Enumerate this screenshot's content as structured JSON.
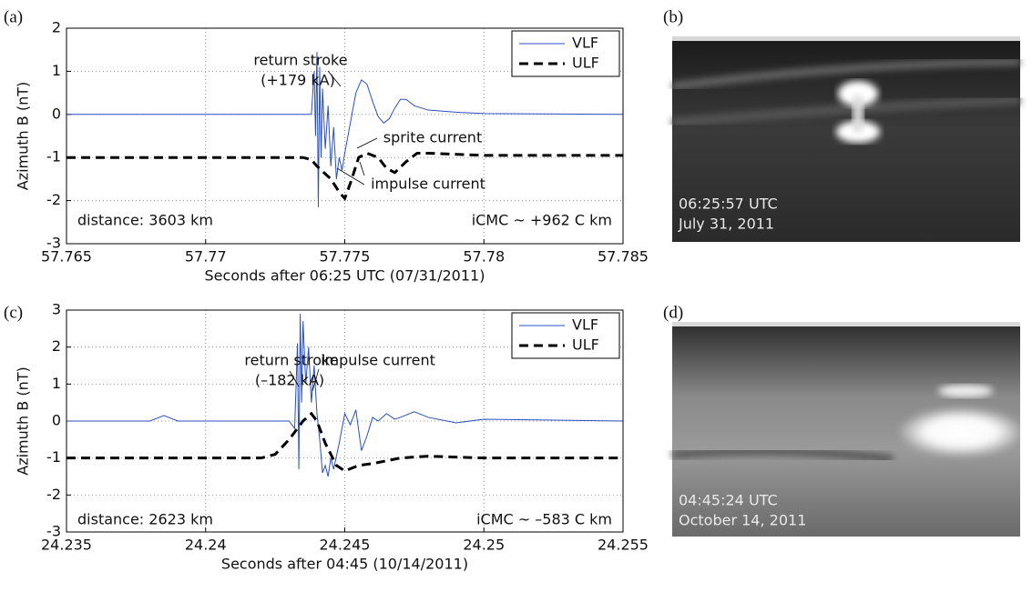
{
  "chart_data": [
    {
      "type": "line",
      "panel_label": "(a)",
      "xlabel": "Seconds after 06:25 UTC (07/31/2011)",
      "ylabel": "Azimuth B (nT)",
      "xlim": [
        57.765,
        57.785
      ],
      "xticks": [
        57.765,
        57.77,
        57.775,
        57.78,
        57.785
      ],
      "ylim": [
        -3,
        2
      ],
      "yticks": [
        -3,
        -2,
        -1,
        0,
        1,
        2
      ],
      "grid": true,
      "legend": "upper right",
      "annotations": [
        "return stroke",
        "(+179 kA)",
        "sprite current",
        "impulse current",
        "distance: 3603 km",
        "iCMC ~ +962 C km"
      ],
      "series": [
        {
          "name": "VLF",
          "color": "#2b4fc0",
          "style": "solid",
          "x": [
            57.765,
            57.768,
            57.771,
            57.7738,
            57.7739,
            57.77395,
            57.774,
            57.77405,
            57.7741,
            57.77415,
            57.7742,
            57.7743,
            57.7744,
            57.7745,
            57.7746,
            57.7747,
            57.7748,
            57.7749,
            57.775,
            57.7752,
            57.7754,
            57.7756,
            57.7758,
            57.776,
            57.7762,
            57.7764,
            57.7766,
            57.7768,
            57.777,
            57.7772,
            57.7775,
            57.778,
            57.779,
            57.78,
            57.785
          ],
          "values": [
            0,
            0,
            0,
            0,
            1.0,
            -0.5,
            1.45,
            -2.15,
            1.1,
            -1.0,
            0.6,
            -0.8,
            0.2,
            -1.2,
            -0.3,
            -1.5,
            -1.0,
            -1.3,
            -0.9,
            -0.2,
            0.5,
            0.8,
            0.7,
            0.3,
            -0.05,
            -0.2,
            -0.1,
            0.15,
            0.35,
            0.35,
            0.2,
            0.1,
            0.05,
            0.02,
            0
          ]
        },
        {
          "name": "ULF",
          "color": "#000000",
          "style": "dashed",
          "x": [
            57.765,
            57.7735,
            57.7738,
            57.774,
            57.7745,
            57.7748,
            57.775,
            57.7752,
            57.7755,
            57.7758,
            57.7762,
            57.7765,
            57.7768,
            57.7772,
            57.7776,
            57.778,
            57.78,
            57.785
          ],
          "values": [
            -1,
            -1,
            -1.05,
            -1.2,
            -1.5,
            -1.8,
            -1.95,
            -1.6,
            -1.0,
            -0.9,
            -1.0,
            -1.25,
            -1.35,
            -1.1,
            -0.9,
            -0.9,
            -0.95,
            -0.95
          ]
        }
      ]
    },
    {
      "type": "line",
      "panel_label": "(c)",
      "xlabel": "Seconds after 04:45 (10/14/2011)",
      "ylabel": "Azimuth B (nT)",
      "xlim": [
        24.235,
        24.255
      ],
      "xticks": [
        24.235,
        24.24,
        24.245,
        24.25,
        24.255
      ],
      "ylim": [
        -3,
        3
      ],
      "yticks": [
        -3,
        -2,
        -1,
        0,
        1,
        2,
        3
      ],
      "grid": true,
      "legend": "upper right",
      "annotations": [
        "return stroke",
        "(–182 kA)",
        "impulse current",
        "distance: 2623 km",
        "iCMC ~ –583 C km"
      ],
      "series": [
        {
          "name": "VLF",
          "color": "#2b4fc0",
          "style": "solid",
          "x": [
            24.235,
            24.238,
            24.2385,
            24.239,
            24.242,
            24.243,
            24.2432,
            24.2433,
            24.24335,
            24.2434,
            24.24345,
            24.2435,
            24.2436,
            24.2437,
            24.2438,
            24.2439,
            24.244,
            24.2441,
            24.2442,
            24.2443,
            24.2444,
            24.2445,
            24.2446,
            24.2448,
            24.245,
            24.2452,
            24.2454,
            24.2456,
            24.2458,
            24.246,
            24.2462,
            24.2465,
            24.2468,
            24.247,
            24.2475,
            24.248,
            24.249,
            24.25,
            24.255
          ],
          "values": [
            0,
            0,
            0.15,
            0,
            0,
            0,
            -0.2,
            2.1,
            -1.3,
            2.9,
            0.5,
            2.7,
            1.0,
            2.0,
            0.5,
            1.5,
            0.2,
            -0.5,
            -1.4,
            -1.2,
            -1.5,
            -1.0,
            -1.3,
            -0.6,
            0.2,
            -0.1,
            0.3,
            -0.8,
            -0.4,
            0.1,
            0.0,
            0.2,
            0.05,
            0.1,
            0.25,
            0.1,
            -0.05,
            0.05,
            0
          ]
        },
        {
          "name": "ULF",
          "color": "#000000",
          "style": "dashed",
          "x": [
            24.235,
            24.242,
            24.2425,
            24.243,
            24.2435,
            24.2438,
            24.244,
            24.2443,
            24.2447,
            24.245,
            24.2455,
            24.246,
            24.247,
            24.248,
            24.25,
            24.255
          ],
          "values": [
            -1,
            -1,
            -0.9,
            -0.5,
            0,
            0.2,
            0,
            -0.6,
            -1.2,
            -1.35,
            -1.2,
            -1.15,
            -1.0,
            -0.95,
            -1.0,
            -1.0
          ]
        }
      ]
    }
  ],
  "photos": [
    {
      "label": "(b)",
      "caption": [
        "06:25:57 UTC",
        "July 31, 2011"
      ]
    },
    {
      "label": "(d)",
      "caption": [
        "04:45:24 UTC",
        "October 14, 2011"
      ]
    }
  ]
}
